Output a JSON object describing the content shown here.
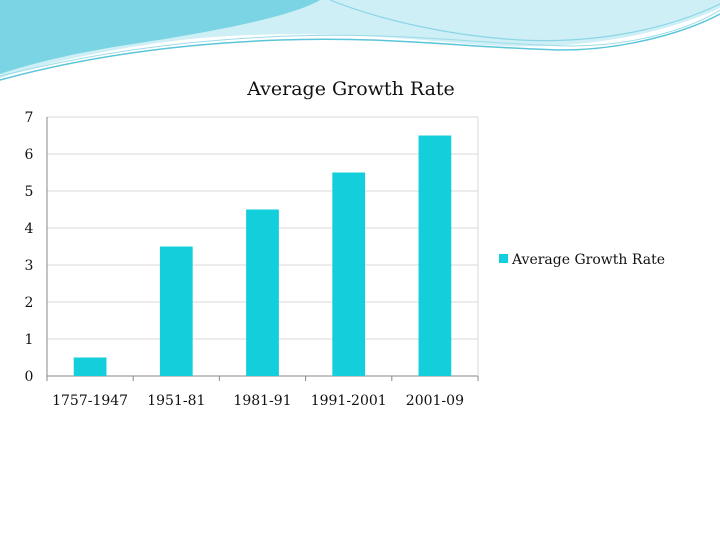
{
  "colors": {
    "bar": "#13cfdb",
    "wave_dark": "#5bc6d9",
    "wave_light": "#b8e7ef",
    "gridline": "#d9d9d9",
    "axis": "#888888"
  },
  "chart_data": {
    "type": "bar",
    "title": "Average Growth Rate",
    "xlabel": "",
    "ylabel": "",
    "categories": [
      "1757-1947",
      "1951-81",
      "1981-91",
      "1991-2001",
      "2001-09"
    ],
    "series": [
      {
        "name": "Average Growth Rate",
        "values": [
          0.5,
          3.5,
          4.5,
          5.5,
          6.5
        ]
      }
    ],
    "ylim": [
      0,
      7
    ],
    "yticks": [
      "0",
      "1",
      "2",
      "3",
      "4",
      "5",
      "6",
      "7"
    ],
    "grid": true,
    "legend_position": "right"
  }
}
